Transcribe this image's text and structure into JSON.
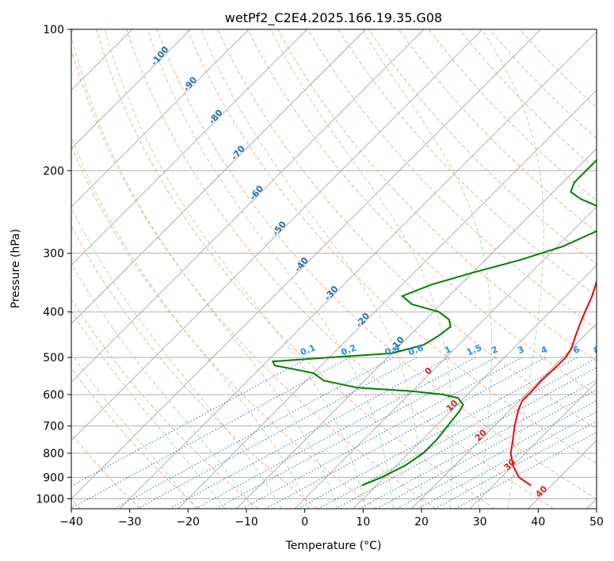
{
  "chart_data": {
    "type": "line",
    "title": "wetPf2_C2E4.2025.166.19.35.G08",
    "xlabel": "Temperature (°C)",
    "ylabel": "Pressure (hPa)",
    "xlim": [
      -40,
      50
    ],
    "ylim": [
      1050,
      100
    ],
    "y_scale": "log",
    "x_ticks": [
      "−40",
      "−30",
      "−20",
      "−10",
      "0",
      "10",
      "20",
      "30",
      "40",
      "50"
    ],
    "x_tick_values": [
      -40,
      -30,
      -20,
      -10,
      0,
      10,
      20,
      30,
      40,
      50
    ],
    "y_ticks": [
      "100",
      "200",
      "300",
      "400",
      "500",
      "600",
      "700",
      "800",
      "900",
      "1000"
    ],
    "y_tick_values": [
      100,
      200,
      300,
      400,
      500,
      600,
      700,
      800,
      900,
      1000
    ],
    "grid": true,
    "series": [
      {
        "color": "#ff0000",
        "points": [
          [
            937,
            36.5
          ],
          [
            900,
            33.0
          ],
          [
            850,
            30.0
          ],
          [
            800,
            27.5
          ],
          [
            760,
            26.0
          ],
          [
            700,
            23.5
          ],
          [
            650,
            21.5
          ],
          [
            620,
            20.5
          ],
          [
            600,
            20.5
          ],
          [
            560,
            20.3
          ],
          [
            520,
            20.5
          ],
          [
            500,
            20.5
          ],
          [
            480,
            20.0
          ],
          [
            450,
            18.5
          ],
          [
            420,
            17.0
          ],
          [
            400,
            16.0
          ],
          [
            370,
            14.5
          ],
          [
            340,
            12.5
          ],
          [
            310,
            10.5
          ],
          [
            290,
            9.5
          ],
          [
            270,
            8.5
          ],
          [
            255,
            7.5
          ],
          [
            245,
            7.2
          ],
          [
            230,
            7.0
          ],
          [
            215,
            7.0
          ],
          [
            200,
            6.5
          ],
          [
            185,
            5.5
          ],
          [
            170,
            4.5
          ],
          [
            155,
            3.8
          ],
          [
            145,
            4.0
          ],
          [
            135,
            4.5
          ],
          [
            125,
            4.0
          ],
          [
            118,
            3.0
          ],
          [
            112,
            3.5
          ],
          [
            105,
            4.2
          ],
          [
            100,
            4.0
          ]
        ]
      },
      {
        "color": "#008000",
        "points": [
          [
            937,
            7.5
          ],
          [
            900,
            9.5
          ],
          [
            850,
            11.5
          ],
          [
            800,
            12.5
          ],
          [
            750,
            12.5
          ],
          [
            700,
            12.0
          ],
          [
            650,
            11.5
          ],
          [
            630,
            11.0
          ],
          [
            610,
            9.0
          ],
          [
            600,
            6.0
          ],
          [
            590,
            0.0
          ],
          [
            580,
            -10.0
          ],
          [
            560,
            -17.0
          ],
          [
            540,
            -20.0
          ],
          [
            520,
            -28.0
          ],
          [
            510,
            -29.0
          ],
          [
            500,
            -20.0
          ],
          [
            490,
            -10.0
          ],
          [
            470,
            -6.0
          ],
          [
            450,
            -5.0
          ],
          [
            430,
            -4.5
          ],
          [
            415,
            -6.0
          ],
          [
            400,
            -9.0
          ],
          [
            385,
            -15.0
          ],
          [
            370,
            -18.0
          ],
          [
            350,
            -15.0
          ],
          [
            330,
            -10.0
          ],
          [
            310,
            -4.0
          ],
          [
            290,
            1.0
          ],
          [
            270,
            4.0
          ],
          [
            260,
            5.0
          ],
          [
            250,
            4.0
          ],
          [
            240,
            1.0
          ],
          [
            230,
            -4.0
          ],
          [
            222,
            -7.0
          ],
          [
            212,
            -8.0
          ],
          [
            200,
            -8.0
          ],
          [
            185,
            -8.0
          ],
          [
            170,
            -5.0
          ],
          [
            155,
            -3.5
          ],
          [
            140,
            -3.0
          ],
          [
            130,
            -1.5
          ],
          [
            120,
            -1.5
          ],
          [
            112,
            -0.5
          ],
          [
            106,
            0.5
          ],
          [
            100,
            2.5
          ]
        ]
      }
    ],
    "dry_adiabats_C": [
      -40,
      -30,
      -20,
      -10,
      0,
      10,
      20,
      30,
      40,
      50,
      60,
      70,
      80,
      90,
      100,
      110,
      120,
      130,
      140,
      150,
      160,
      170
    ],
    "moist_adiabats_C": [
      -20,
      -15,
      -10,
      -5,
      0,
      5,
      10,
      15,
      20,
      25,
      30,
      35
    ],
    "dry_adiabat_labels": [
      {
        "text": "-100",
        "t": -100,
        "p": 115
      },
      {
        "text": "-90",
        "t": -90,
        "p": 132
      },
      {
        "text": "-80",
        "t": -80,
        "p": 155
      },
      {
        "text": "-70",
        "t": -70,
        "p": 185
      },
      {
        "text": "-60",
        "t": -60,
        "p": 225
      },
      {
        "text": "-50",
        "t": -50,
        "p": 268
      },
      {
        "text": "-40",
        "t": -40,
        "p": 320
      },
      {
        "text": "-30",
        "t": -30,
        "p": 368
      },
      {
        "text": "-20",
        "t": -20,
        "p": 420
      },
      {
        "text": "-10",
        "t": -10,
        "p": 472
      }
    ],
    "temp_labels": [
      {
        "text": "0",
        "t": 0,
        "p": 540
      },
      {
        "text": "10",
        "t": 10,
        "p": 640
      },
      {
        "text": "20",
        "t": 20,
        "p": 740
      },
      {
        "text": "30",
        "t": 30,
        "p": 855
      },
      {
        "text": "40",
        "t": 40,
        "p": 975
      }
    ],
    "mixing_ratios": [
      {
        "text": "0.1",
        "t500": -23.5
      },
      {
        "text": "0.2",
        "t500": -16.5
      },
      {
        "text": "0.4",
        "t500": -9.0
      },
      {
        "text": "0.6",
        "t500": -5.0
      },
      {
        "text": "1",
        "t500": 0.5
      },
      {
        "text": "1.5",
        "t500": 5.0
      },
      {
        "text": "2",
        "t500": 8.5
      },
      {
        "text": "3",
        "t500": 13.0
      },
      {
        "text": "4",
        "t500": 17.0
      },
      {
        "text": "6",
        "t500": 22.5
      },
      {
        "text": "8",
        "t500": 26.0
      },
      {
        "text": "10",
        "t500": 29.0
      },
      {
        "text": "13",
        "t500": 33.0
      },
      {
        "text": "16",
        "t500": 36.0
      },
      {
        "text": "20",
        "t500": 39.5
      },
      {
        "text": "25",
        "t500": 43.0
      },
      {
        "text": "30",
        "t500": 46.0
      },
      {
        "text": "36",
        "t500": 49.5
      }
    ],
    "colors": {
      "temperature": "#ff0000",
      "dewpoint": "#008000",
      "dry_adiabat": "#f4a582",
      "moist_adiabat": "#a6d096",
      "mixing_ratio": "#1f77d4",
      "isotherm": "#888888",
      "dry_label": "#1f6fa8",
      "temp_label": "#d62728",
      "mixing_label": "#1e90ff"
    }
  }
}
